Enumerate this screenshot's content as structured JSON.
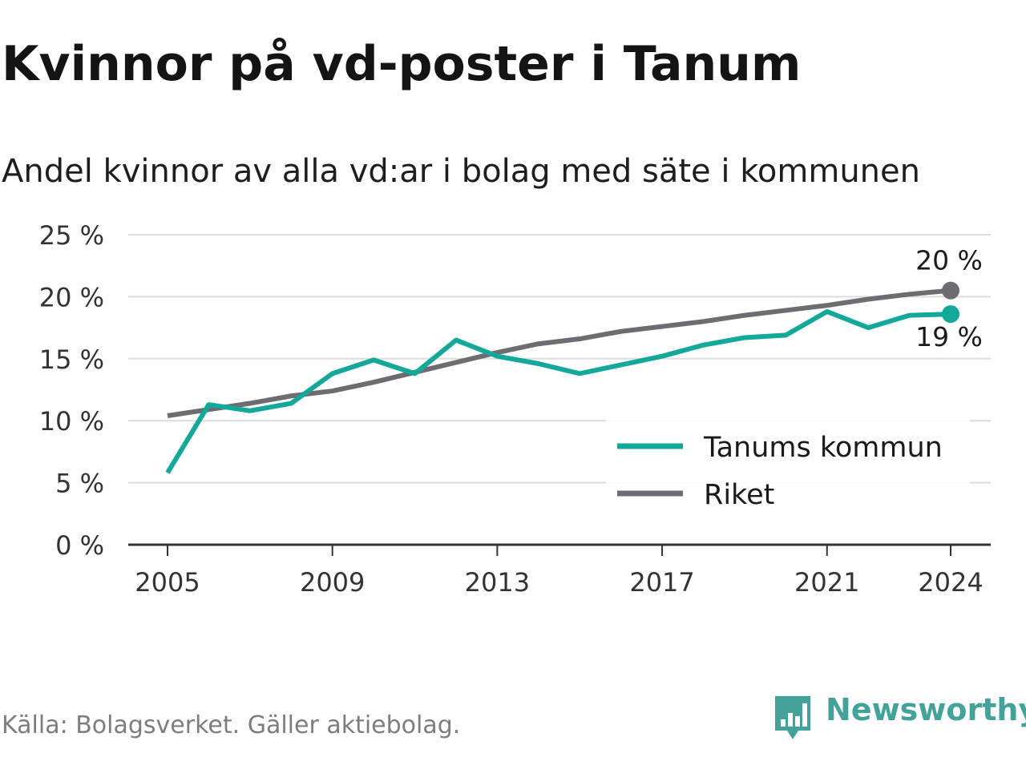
{
  "title": "Kvinnor på vd-poster i Tanum",
  "subtitle": "Andel kvinnor av alla vd:ar i bolag med säte i kommunen",
  "source": "Källa: Bolagsverket. Gäller aktiebolag.",
  "brand": {
    "name": "Newsworthy",
    "icon": "bar-chart-speech-bubble-icon",
    "color": "#43a39a"
  },
  "chart_data": {
    "type": "line",
    "x": [
      2005,
      2006,
      2007,
      2008,
      2009,
      2010,
      2011,
      2012,
      2013,
      2014,
      2015,
      2016,
      2017,
      2018,
      2019,
      2020,
      2021,
      2022,
      2023,
      2024
    ],
    "xticks": [
      2005,
      2009,
      2013,
      2017,
      2021,
      2024
    ],
    "xtick_labels": [
      "2005",
      "2009",
      "2013",
      "2017",
      "2021",
      "2024"
    ],
    "ylim": [
      0,
      25
    ],
    "yticks": [
      0,
      5,
      10,
      15,
      20,
      25
    ],
    "ytick_labels": [
      "0 %",
      "5 %",
      "10 %",
      "15 %",
      "20 %",
      "25 %"
    ],
    "grid": true,
    "legend_position": "bottom-right",
    "series": [
      {
        "name": "Tanums kommun",
        "color": "#13a89a",
        "values": [
          5.8,
          11.3,
          10.8,
          11.4,
          13.8,
          14.9,
          13.8,
          16.5,
          15.2,
          14.6,
          13.8,
          14.5,
          15.2,
          16.1,
          16.7,
          16.9,
          18.8,
          17.5,
          18.5,
          18.6
        ],
        "end_label": "19 %"
      },
      {
        "name": "Riket",
        "color": "#6e6c73",
        "values": [
          10.4,
          10.9,
          11.4,
          12.0,
          12.4,
          13.1,
          13.9,
          14.7,
          15.5,
          16.2,
          16.6,
          17.2,
          17.6,
          18.0,
          18.5,
          18.9,
          19.3,
          19.8,
          20.2,
          20.5
        ],
        "end_label": "20 %"
      }
    ]
  }
}
